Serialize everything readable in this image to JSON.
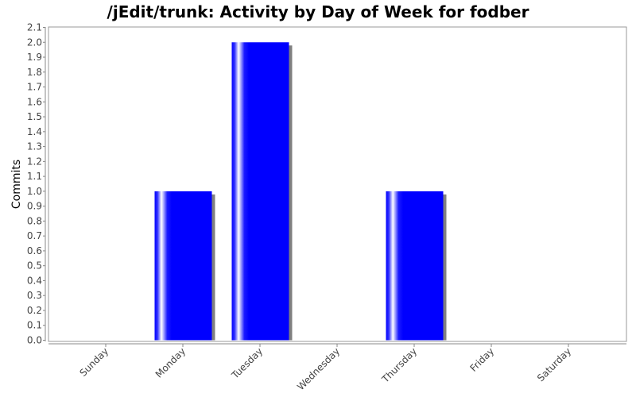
{
  "chart_data": {
    "type": "bar",
    "title": "/jEdit/trunk: Activity by Day of Week for fodber",
    "xlabel": "",
    "ylabel": "Commits",
    "categories": [
      "Sunday",
      "Monday",
      "Tuesday",
      "Wednesday",
      "Thursday",
      "Friday",
      "Saturday"
    ],
    "values": [
      0,
      1,
      2,
      0,
      1,
      0,
      0
    ],
    "ylim": [
      0,
      2.1
    ],
    "yticks": [
      "0.0",
      "0.1",
      "0.2",
      "0.3",
      "0.4",
      "0.5",
      "0.6",
      "0.7",
      "0.8",
      "0.9",
      "1.0",
      "1.1",
      "1.2",
      "1.3",
      "1.4",
      "1.5",
      "1.6",
      "1.7",
      "1.8",
      "1.9",
      "2.0",
      "2.1"
    ],
    "grid": false,
    "bar_color": "#0000ff",
    "shadow_color": "#808080",
    "plot_background": "#ffffff"
  }
}
